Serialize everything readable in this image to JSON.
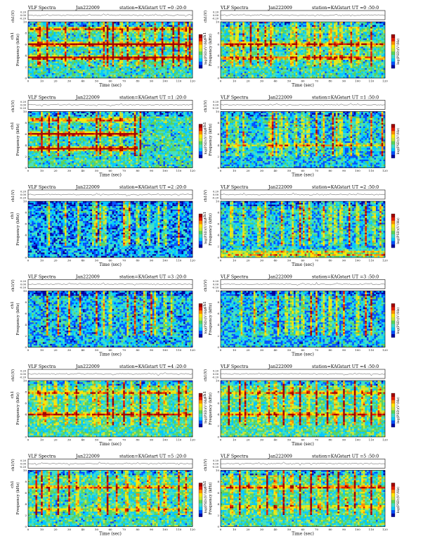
{
  "page": {
    "background": "#ffffff"
  },
  "chart_data": [
    {
      "type": "heatmap",
      "title_left": "VLF Spectra",
      "date": "Jan222009",
      "station": "station=KAG",
      "start": "start  UT =0 :20:0",
      "channel_label": "ch1",
      "wave_ylabel": "ch1(V)",
      "wave_ticks": [
        "0.20",
        "0.00",
        "-0.20"
      ],
      "ylabel": "Frequency  (kHz)",
      "xlabel": "Time  (sec)",
      "x_ticks": [
        0,
        10,
        20,
        30,
        40,
        50,
        60,
        70,
        80,
        90,
        100,
        110,
        120
      ],
      "y_ticks": [
        0,
        2,
        4,
        6,
        8,
        10
      ],
      "xlim": [
        0,
        120
      ],
      "ylim": [
        0,
        10
      ],
      "colorbar_label": "log(PSD)(V²/Hz)",
      "bands": [
        {
          "freq": 6.0,
          "strength": 0.9
        },
        {
          "freq": 3.6,
          "strength": 0.85
        },
        {
          "freq": 8.7,
          "strength": 0.5
        }
      ],
      "bursts": [
        7,
        9,
        14,
        27,
        45,
        55,
        58,
        62,
        68,
        73,
        80,
        85,
        93,
        98,
        106,
        110,
        115,
        118
      ],
      "base_level": 0.35
    },
    {
      "type": "heatmap",
      "title_left": "VLF Spectra",
      "date": "Jan222009",
      "station": "station=KAG",
      "start": "start  UT =0 :50:0",
      "channel_label": "ch1",
      "wave_ylabel": "ch1(V)",
      "wave_ticks": [
        "0.20",
        "0.00",
        "-0.20"
      ],
      "ylabel": "Frequency  (kHz)",
      "xlabel": "Time  (sec)",
      "x_ticks": [
        0,
        10,
        20,
        30,
        40,
        50,
        60,
        70,
        80,
        90,
        100,
        110,
        120
      ],
      "y_ticks": [
        0,
        2,
        4,
        6,
        8,
        10
      ],
      "xlim": [
        0,
        120
      ],
      "ylim": [
        0,
        10
      ],
      "colorbar_label": "log(PSD)(V²/Hz)",
      "bands": [
        {
          "freq": 6.0,
          "strength": 0.6
        },
        {
          "freq": 3.6,
          "strength": 0.55
        }
      ],
      "bursts": [
        8,
        12,
        17,
        22,
        27,
        33,
        37,
        52,
        55,
        64,
        69,
        73,
        80,
        84,
        88,
        95,
        100,
        110
      ],
      "base_level": 0.35
    },
    {
      "type": "heatmap",
      "title_left": "VLF Spectra",
      "date": "Jan222009",
      "station": "station=KAG",
      "start": "start  UT =1 :20:0",
      "channel_label": "ch1",
      "wave_ylabel": "ch1(V)",
      "wave_ticks": [
        "0.20",
        "0.00",
        "-0.20"
      ],
      "ylabel": "Frequency  (kHz)",
      "xlabel": "Time  (sec)",
      "x_ticks": [
        0,
        10,
        20,
        30,
        40,
        50,
        60,
        70,
        80,
        90,
        100,
        110,
        120
      ],
      "y_ticks": [
        0,
        2,
        4,
        6,
        8,
        10
      ],
      "xlim": [
        0,
        120
      ],
      "ylim": [
        0,
        10
      ],
      "colorbar_label": "log(PSD)(V²/Hz)",
      "bands": [
        {
          "freq": 6.0,
          "strength": 0.95,
          "end": 80
        },
        {
          "freq": 3.4,
          "strength": 0.9,
          "end": 80
        },
        {
          "freq": 8.5,
          "strength": 0.5,
          "end": 80
        }
      ],
      "bursts": [
        10,
        15,
        22,
        30,
        50,
        53,
        60,
        68,
        78,
        82
      ],
      "base_level": 0.35
    },
    {
      "type": "heatmap",
      "title_left": "VLF Spectra",
      "date": "Jan222009",
      "station": "station=KAG",
      "start": "start  UT =1 :50:0",
      "channel_label": "ch1",
      "wave_ylabel": "ch1(V)",
      "wave_ticks": [
        "0.20",
        "0.00",
        "-0.20"
      ],
      "ylabel": "Frequency  (kHz)",
      "xlabel": "Time  (sec)",
      "x_ticks": [
        0,
        10,
        20,
        30,
        40,
        50,
        60,
        70,
        80,
        90,
        100,
        110,
        120
      ],
      "y_ticks": [
        0,
        2,
        4,
        6,
        8,
        10
      ],
      "xlim": [
        0,
        120
      ],
      "ylim": [
        0,
        10
      ],
      "colorbar_label": "log(PSD)(V²/Hz)",
      "bands": [
        {
          "freq": 4.0,
          "strength": 0.35
        }
      ],
      "bursts": [
        5,
        12,
        17,
        36,
        38,
        41,
        44,
        48,
        55,
        60,
        64,
        70,
        75,
        82,
        85,
        88,
        95,
        100,
        110,
        118
      ],
      "base_level": 0.28
    },
    {
      "type": "heatmap",
      "title_left": "VLF Spectra",
      "date": "Jan222009",
      "station": "station=KAG",
      "start": "start  UT =2 :20:0",
      "channel_label": "ch1",
      "wave_ylabel": "ch1(V)",
      "wave_ticks": [
        "0.20",
        "0.00",
        "-0.20"
      ],
      "ylabel": "Frequency  (kHz)",
      "xlabel": "Time  (sec)",
      "x_ticks": [
        0,
        10,
        20,
        30,
        40,
        50,
        60,
        70,
        80,
        90,
        100,
        110,
        120
      ],
      "y_ticks": [
        0,
        2,
        4,
        6,
        8,
        10
      ],
      "xlim": [
        0,
        120
      ],
      "ylim": [
        0,
        10
      ],
      "colorbar_label": "log(PSD)(V²/Hz)",
      "bands": [],
      "bursts": [
        15,
        27,
        37,
        48,
        50,
        53,
        56,
        70,
        72,
        74,
        80,
        88,
        95,
        100,
        110
      ],
      "base_level": 0.22
    },
    {
      "type": "heatmap",
      "title_left": "VLF Spectra",
      "date": "Jan222009",
      "station": "station=KAG",
      "start": "start  UT =2 :50:0",
      "channel_label": "ch1",
      "wave_ylabel": "ch1(V)",
      "wave_ticks": [
        "0.20",
        "0.00",
        "-0.20"
      ],
      "ylabel": "Frequency  (kHz)",
      "xlabel": "Time  (sec)",
      "x_ticks": [
        0,
        10,
        20,
        30,
        40,
        50,
        60,
        70,
        80,
        90,
        100,
        110,
        120
      ],
      "y_ticks": [
        0,
        2,
        4,
        6,
        8,
        10
      ],
      "xlim": [
        0,
        120
      ],
      "ylim": [
        0,
        10
      ],
      "colorbar_label": "log(PSD)(V²/Hz)",
      "bands": [
        {
          "freq": 1.0,
          "strength": 0.4
        },
        {
          "freq": 0.4,
          "strength": 0.5
        }
      ],
      "bursts": [
        8,
        17,
        28,
        33,
        45,
        53,
        58,
        61,
        65,
        75,
        80,
        84,
        88,
        94,
        100,
        106,
        112,
        117
      ],
      "base_level": 0.28
    },
    {
      "type": "heatmap",
      "title_left": "VLF Spectra",
      "date": "Jan222009",
      "station": "station=KAG",
      "start": "start  UT =3 :20:0",
      "channel_label": "ch1",
      "wave_ylabel": "ch1(V)",
      "wave_ticks": [
        "0.20",
        "0.00",
        "-0.20"
      ],
      "ylabel": "Frequency  (kHz)",
      "xlabel": "Time  (sec)",
      "x_ticks": [
        0,
        10,
        20,
        30,
        40,
        50,
        60,
        70,
        80,
        90,
        100,
        110,
        120
      ],
      "y_ticks": [
        0,
        2,
        4,
        6,
        8,
        10
      ],
      "xlim": [
        0,
        120
      ],
      "ylim": [
        0,
        10
      ],
      "colorbar_label": "log(PSD)(V²/Hz)",
      "bands": [],
      "bursts": [
        14,
        22,
        30,
        38,
        50,
        55,
        60,
        73,
        78,
        85,
        90,
        93,
        100,
        105
      ],
      "base_level": 0.26
    },
    {
      "type": "heatmap",
      "title_left": "VLF Spectra",
      "date": "Jan222009",
      "station": "station=KAG",
      "start": "start  UT =3 :50:0",
      "channel_label": "ch1",
      "wave_ylabel": "ch1(V)",
      "wave_ticks": [
        "0.20",
        "0.00",
        "-0.20"
      ],
      "ylabel": "Frequency  (kHz)",
      "xlabel": "Time  (sec)",
      "x_ticks": [
        0,
        10,
        20,
        30,
        40,
        50,
        60,
        70,
        80,
        90,
        100,
        110,
        120
      ],
      "y_ticks": [
        0,
        2,
        4,
        6,
        8,
        10
      ],
      "xlim": [
        0,
        120
      ],
      "ylim": [
        0,
        10
      ],
      "colorbar_label": "log(PSD)(V²/Hz)",
      "bands": [],
      "bursts": [
        15,
        25,
        33,
        42,
        48,
        52,
        56,
        60,
        66,
        70,
        75,
        80,
        85,
        90,
        100,
        106,
        110
      ],
      "base_level": 0.27
    },
    {
      "type": "heatmap",
      "title_left": "VLF Spectra",
      "date": "Jan222009",
      "station": "station=KAG",
      "start": "start  UT =4 :20:0",
      "channel_label": "ch1",
      "wave_ylabel": "ch1(V)",
      "wave_ticks": [
        "0.20",
        "0.00",
        "-0.20"
      ],
      "ylabel": "Frequency  (kHz)",
      "xlabel": "Time  (sec)",
      "x_ticks": [
        0,
        10,
        20,
        30,
        40,
        50,
        60,
        70,
        80,
        90,
        100,
        110,
        120
      ],
      "y_ticks": [
        0,
        2,
        4,
        6,
        8,
        10
      ],
      "xlim": [
        0,
        120
      ],
      "ylim": [
        0,
        10
      ],
      "colorbar_label": "log(PSD)(V²/Hz)",
      "bands": [
        {
          "freq": 4.0,
          "strength": 0.55
        },
        {
          "freq": 7.8,
          "strength": 0.35
        }
      ],
      "bursts": [
        8,
        12,
        20,
        28,
        35,
        48,
        52,
        58,
        62,
        70,
        76,
        82,
        88,
        95,
        100,
        110,
        115
      ],
      "base_level": 0.38
    },
    {
      "type": "heatmap",
      "title_left": "VLF Spectra",
      "date": "Jan222009",
      "station": "station=KAG",
      "start": "start  UT =4 :50:0",
      "channel_label": "ch1",
      "wave_ylabel": "ch1(V)",
      "wave_ticks": [
        "0.20",
        "0.00",
        "-0.20"
      ],
      "ylabel": "Frequency  (kHz)",
      "xlabel": "Time  (sec)",
      "x_ticks": [
        0,
        10,
        20,
        30,
        40,
        50,
        60,
        70,
        80,
        90,
        100,
        110,
        120
      ],
      "y_ticks": [
        0,
        2,
        4,
        6,
        8,
        10
      ],
      "xlim": [
        0,
        120
      ],
      "ylim": [
        0,
        10
      ],
      "colorbar_label": "log(PSD)(V²/Hz)",
      "bands": [
        {
          "freq": 4.0,
          "strength": 0.5
        },
        {
          "freq": 7.8,
          "strength": 0.35
        }
      ],
      "bursts": [
        6,
        14,
        18,
        28,
        35,
        40,
        46,
        52,
        58,
        64,
        70,
        78,
        84,
        90,
        98,
        104,
        110,
        116
      ],
      "base_level": 0.38
    },
    {
      "type": "heatmap",
      "title_left": "VLF Spectra",
      "date": "Jan222009",
      "station": "station=KAG",
      "start": "start  UT =5 :20:0",
      "channel_label": "ch1",
      "wave_ylabel": "ch1(V)",
      "wave_ticks": [
        "0.20",
        "0.00",
        "-0.20"
      ],
      "ylabel": "Frequency  (kHz)",
      "xlabel": "Time  (sec)",
      "x_ticks": [
        0,
        10,
        20,
        30,
        40,
        50,
        60,
        70,
        80,
        90,
        100,
        110,
        120
      ],
      "y_ticks": [
        0,
        2,
        4,
        6,
        8,
        10
      ],
      "xlim": [
        0,
        120
      ],
      "ylim": [
        0,
        10
      ],
      "colorbar_label": "log(PSD)(V²/Hz)",
      "bands": [
        {
          "freq": 7.0,
          "strength": 0.45
        },
        {
          "freq": 3.0,
          "strength": 0.3
        }
      ],
      "bursts": [
        6,
        10,
        15,
        22,
        30,
        36,
        52,
        58,
        65,
        72,
        80,
        88,
        95,
        100,
        110,
        115
      ],
      "base_level": 0.36
    },
    {
      "type": "heatmap",
      "title_left": "VLF Spectra",
      "date": "Jan222009",
      "station": "station=KAG",
      "start": "start  UT =5 :50:0",
      "channel_label": "ch1",
      "wave_ylabel": "ch1(V)",
      "wave_ticks": [
        "0.20",
        "0.00",
        "-0.20"
      ],
      "ylabel": "Frequency  (kHz)",
      "xlabel": "Time  (sec)",
      "x_ticks": [
        0,
        10,
        20,
        30,
        40,
        50,
        60,
        70,
        80,
        90,
        100,
        110,
        120
      ],
      "y_ticks": [
        0,
        2,
        4,
        6,
        8,
        10
      ],
      "xlim": [
        0,
        120
      ],
      "ylim": [
        0,
        10
      ],
      "colorbar_label": "log(PSD)(V²/Hz)",
      "bands": [
        {
          "freq": 7.0,
          "strength": 0.5
        },
        {
          "freq": 3.5,
          "strength": 0.3
        }
      ],
      "bursts": [
        8,
        14,
        20,
        28,
        34,
        40,
        46,
        52,
        58,
        66,
        72,
        78,
        86,
        92,
        98,
        104,
        110,
        116
      ],
      "base_level": 0.37
    }
  ],
  "colormap": [
    "#0000a0",
    "#0050ff",
    "#00c8ff",
    "#40e0c0",
    "#5ad25a",
    "#c8e632",
    "#ffe600",
    "#ff8c00",
    "#e61e00",
    "#a00000"
  ]
}
